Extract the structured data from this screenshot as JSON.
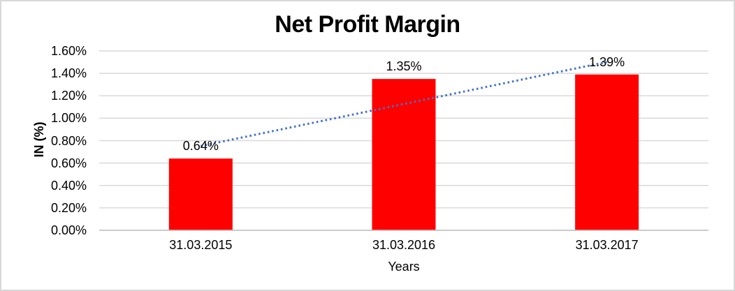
{
  "chart_data": {
    "type": "bar",
    "title": "Net Profit Margin",
    "xlabel": "Years",
    "ylabel": "IN (%)",
    "categories": [
      "31.03.2015",
      "31.03.2016",
      "31.03.2017"
    ],
    "values": [
      0.64,
      1.35,
      1.39
    ],
    "data_labels": [
      "0.64%",
      "1.35%",
      "1.39%"
    ],
    "y_ticks": [
      "0.00%",
      "0.20%",
      "0.40%",
      "0.60%",
      "0.80%",
      "1.00%",
      "1.20%",
      "1.40%",
      "1.60%"
    ],
    "ylim": [
      0,
      1.6
    ],
    "grid": true,
    "legend": "none",
    "bar_color": "#ff0000",
    "gridline_color": "#d9d9d9",
    "axis_line_color": "#bfbfbf",
    "text_color": "#000000",
    "border_color": "#d8d8d8",
    "trendline": {
      "type": "linear",
      "style": "dotted",
      "color": "#4472c4"
    }
  }
}
